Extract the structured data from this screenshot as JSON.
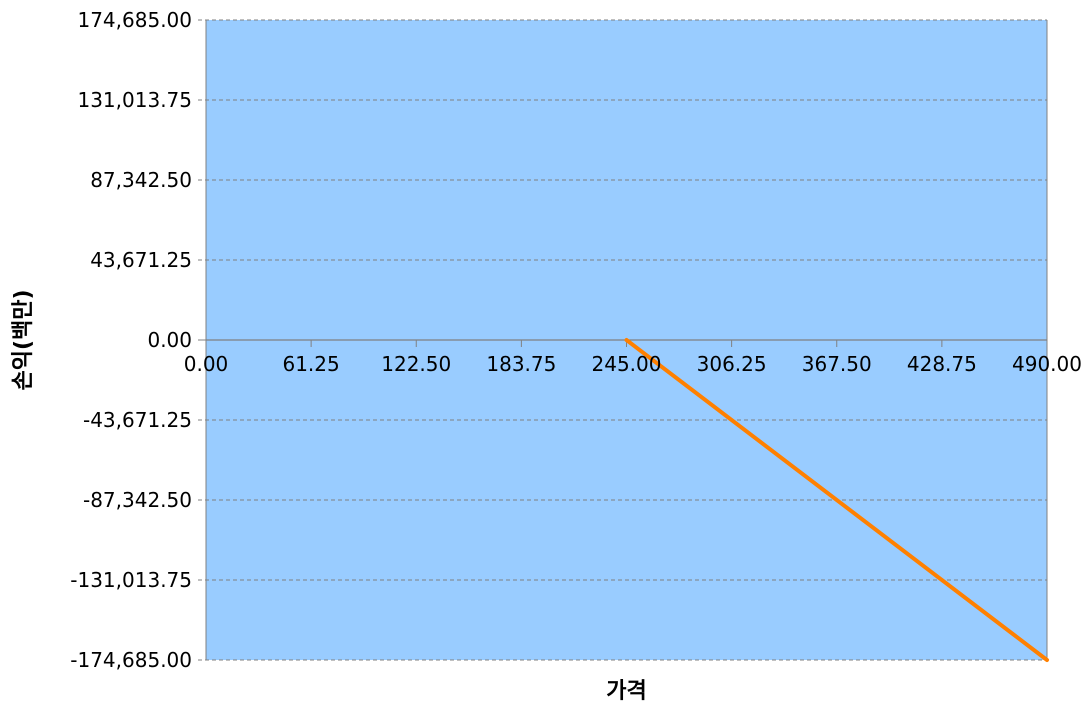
{
  "chart_data": {
    "type": "line",
    "title": "",
    "xlabel": "가격",
    "ylabel": "손익(백만)",
    "xlim": [
      0,
      490
    ],
    "ylim": [
      -174685,
      174685
    ],
    "x_ticks": [
      0,
      61.25,
      122.5,
      183.75,
      245,
      306.25,
      367.5,
      428.75,
      490
    ],
    "x_tick_labels": [
      "0.00",
      "61.25",
      "122.50",
      "183.75",
      "245.00",
      "306.25",
      "367.50",
      "428.75",
      "490.00"
    ],
    "y_ticks": [
      174685,
      131013.75,
      87342.5,
      43671.25,
      0,
      -43671.25,
      -87342.5,
      -131013.75,
      -174685
    ],
    "y_tick_labels": [
      "174,685.00",
      "131,013.75",
      "87,342.50",
      "43,671.25",
      "0.00",
      "-43,671.25",
      "-87,342.50",
      "-131,013.75",
      "-174,685.00"
    ],
    "grid": true,
    "legend": "none",
    "colors": {
      "plot_background": "#99ccff",
      "series_line": "#ff8000",
      "grid": "#808080",
      "axis": "#808080"
    },
    "series": [
      {
        "x": [
          245,
          490
        ],
        "y": [
          0,
          -174685
        ]
      }
    ]
  }
}
